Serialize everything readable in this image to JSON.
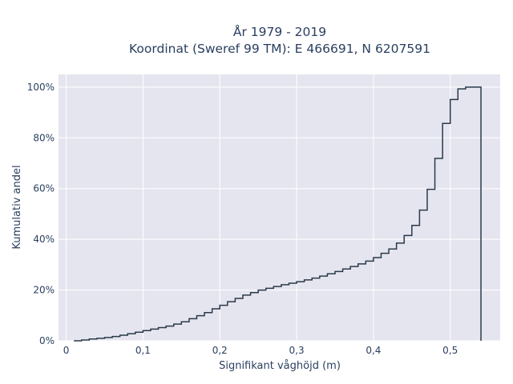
{
  "chart_data": {
    "type": "line",
    "line_shape": "step",
    "title_lines": [
      "År 1979 - 2019",
      "Koordinat (Sweref 99 TM): E 466691, N 6207591"
    ],
    "xlabel": "Signifikant våghöjd (m)",
    "ylabel": "Kumulativ andel",
    "xlim": [
      -0.01,
      0.565
    ],
    "ylim": [
      0,
      1.05
    ],
    "x_ticks": [
      0,
      0.1,
      0.2,
      0.3,
      0.4,
      0.5
    ],
    "x_tick_labels": [
      "0",
      "0,1",
      "0,2",
      "0,3",
      "0,4",
      "0,5"
    ],
    "y_ticks": [
      0,
      0.2,
      0.4,
      0.6,
      0.8,
      1.0
    ],
    "y_tick_labels": [
      "0%",
      "20%",
      "40%",
      "60%",
      "80%",
      "100%"
    ],
    "grid": true,
    "colors": {
      "plot_bg": "#e5e5f0",
      "grid": "#ffffff",
      "line": "#2a3a4a",
      "text": "#2a3f5f"
    },
    "series": [
      {
        "x": [
          0.01,
          0.02,
          0.03,
          0.04,
          0.05,
          0.06,
          0.07,
          0.08,
          0.09,
          0.1,
          0.11,
          0.12,
          0.13,
          0.14,
          0.15,
          0.16,
          0.17,
          0.18,
          0.19,
          0.2,
          0.21,
          0.22,
          0.23,
          0.24,
          0.25,
          0.26,
          0.27,
          0.28,
          0.29,
          0.3,
          0.31,
          0.32,
          0.33,
          0.34,
          0.35,
          0.36,
          0.37,
          0.38,
          0.39,
          0.4,
          0.41,
          0.42,
          0.43,
          0.44,
          0.45,
          0.46,
          0.47,
          0.48,
          0.49,
          0.5,
          0.51,
          0.52,
          0.53,
          0.54
        ],
        "y": [
          0.0,
          0.003,
          0.007,
          0.01,
          0.013,
          0.017,
          0.022,
          0.028,
          0.034,
          0.04,
          0.046,
          0.052,
          0.058,
          0.066,
          0.075,
          0.087,
          0.099,
          0.111,
          0.126,
          0.14,
          0.154,
          0.167,
          0.18,
          0.19,
          0.2,
          0.207,
          0.214,
          0.221,
          0.227,
          0.233,
          0.24,
          0.247,
          0.255,
          0.264,
          0.273,
          0.283,
          0.293,
          0.303,
          0.314,
          0.328,
          0.345,
          0.362,
          0.385,
          0.415,
          0.455,
          0.515,
          0.597,
          0.719,
          0.857,
          0.951,
          0.993,
          1.0,
          1.0,
          1.0
        ]
      }
    ],
    "drop_to_zero_at": 0.54
  }
}
